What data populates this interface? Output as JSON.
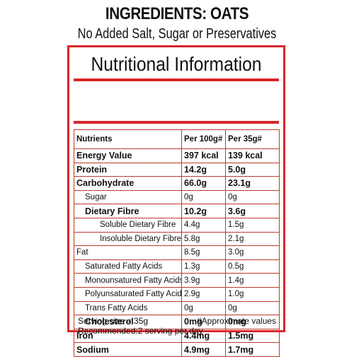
{
  "header": {
    "title": "INGREDIENTS: OATS",
    "subtitle": "No Added Salt, Sugar or Preservatives"
  },
  "panel": {
    "title": "Nutritional Information",
    "columns": [
      "Nutrients",
      "Per 100g#",
      "Per 35g#"
    ],
    "rows": [
      {
        "name": "Energy Value",
        "per100": "397 kcal",
        "per35": "139 kcal"
      },
      {
        "name": "Protein",
        "per100": "14.2g",
        "per35": "5.0g"
      },
      {
        "name": "Carbohydrate",
        "per100": "66.0g",
        "per35": "23.1g"
      },
      {
        "name": "Sugar",
        "per100": "0g",
        "per35": "0g"
      },
      {
        "name": "Dietary Fibre",
        "per100": "10.2g",
        "per35": "3.6g"
      },
      {
        "name": "Soluble Dietary Fibre",
        "per100": "4.4g",
        "per35": "1.5g"
      },
      {
        "name": "Insoluble Dietary Fibre",
        "per100": "5.8g",
        "per35": "2.1g"
      },
      {
        "name": "Fat",
        "per100": "8.5g",
        "per35": "3.0g"
      },
      {
        "name": "Saturated Fatty Acids",
        "per100": "1.3g",
        "per35": "0.5g"
      },
      {
        "name": "Monounsatured Fatty Acids",
        "per100": "3.9g",
        "per35": "1.4g"
      },
      {
        "name": "Polyunsaturated Fatty Acids",
        "per100": "2.9g",
        "per35": "1.0g"
      },
      {
        "name": "Trans Fatty Acids",
        "per100": "0g",
        "per35": "0g"
      },
      {
        "name": "Cholesterol",
        "per100": "0mg",
        "per35": "0mg"
      },
      {
        "name": "Iron",
        "per100": "4.4mg",
        "per35": "1.5mg"
      },
      {
        "name": "Sodium",
        "per100": "4.9mg",
        "per35": "1.7mg"
      }
    ],
    "serving_size": "Serving size = 35g",
    "approx_note": "#Approximate values",
    "recommended": "Recommended:2 serving per day"
  },
  "colors": {
    "accent_red": "#d8262c"
  }
}
